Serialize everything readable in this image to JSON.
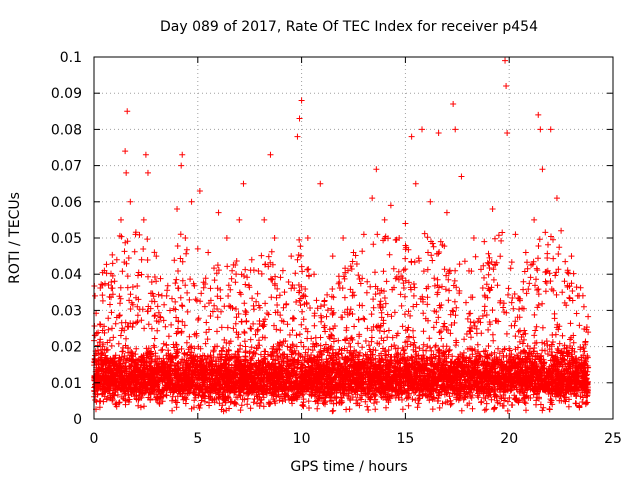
{
  "chart_data": {
    "type": "scatter",
    "title": "Day 089 of 2017, Rate Of TEC Index for receiver p454",
    "xlabel": "GPS time / hours",
    "ylabel": "ROTI / TECUs",
    "xlim": [
      0,
      25
    ],
    "ylim": [
      0,
      0.1
    ],
    "x_ticks": [
      0,
      5,
      10,
      15,
      20,
      25
    ],
    "x_tick_labels": [
      "0",
      "5",
      "10",
      "15",
      "20",
      "25"
    ],
    "y_ticks": [
      0,
      0.01,
      0.02,
      0.03,
      0.04,
      0.05,
      0.06,
      0.07,
      0.08,
      0.09,
      0.1
    ],
    "y_tick_labels": [
      "0",
      "0.01",
      "0.02",
      "0.03",
      "0.04",
      "0.05",
      "0.06",
      "0.07",
      "0.08",
      "0.09",
      "0.1"
    ],
    "grid": true,
    "marker": "+",
    "marker_color": "#ff0000",
    "x_data_range": [
      0,
      23.8
    ],
    "series": [
      {
        "name": "ROTI",
        "points": [
          [
            0.05,
            0.034
          ],
          [
            0.1,
            0.009
          ],
          [
            0.3,
            0.022
          ],
          [
            0.5,
            0.041
          ],
          [
            0.7,
            0.037
          ],
          [
            0.9,
            0.043
          ],
          [
            1.1,
            0.044
          ],
          [
            1.3,
            0.055
          ],
          [
            1.5,
            0.074
          ],
          [
            1.55,
            0.068
          ],
          [
            1.6,
            0.085
          ],
          [
            1.75,
            0.06
          ],
          [
            2.0,
            0.051
          ],
          [
            2.4,
            0.055
          ],
          [
            2.5,
            0.073
          ],
          [
            2.6,
            0.068
          ],
          [
            3.0,
            0.045
          ],
          [
            3.5,
            0.034
          ],
          [
            4.0,
            0.058
          ],
          [
            4.2,
            0.07
          ],
          [
            4.25,
            0.073
          ],
          [
            4.4,
            0.05
          ],
          [
            4.7,
            0.06
          ],
          [
            5.0,
            0.047
          ],
          [
            5.1,
            0.063
          ],
          [
            5.5,
            0.046
          ],
          [
            6.0,
            0.057
          ],
          [
            6.4,
            0.05
          ],
          [
            7.0,
            0.055
          ],
          [
            7.2,
            0.065
          ],
          [
            7.6,
            0.044
          ],
          [
            8.2,
            0.055
          ],
          [
            8.5,
            0.073
          ],
          [
            8.7,
            0.05
          ],
          [
            9.1,
            0.041
          ],
          [
            9.5,
            0.045
          ],
          [
            9.8,
            0.078
          ],
          [
            9.9,
            0.083
          ],
          [
            10.0,
            0.088
          ],
          [
            10.3,
            0.05
          ],
          [
            10.6,
            0.04
          ],
          [
            10.9,
            0.065
          ],
          [
            11.5,
            0.045
          ],
          [
            12.0,
            0.05
          ],
          [
            12.5,
            0.046
          ],
          [
            13.0,
            0.051
          ],
          [
            13.4,
            0.061
          ],
          [
            13.6,
            0.069
          ],
          [
            14.0,
            0.055
          ],
          [
            14.3,
            0.059
          ],
          [
            14.7,
            0.05
          ],
          [
            15.0,
            0.054
          ],
          [
            15.3,
            0.078
          ],
          [
            15.5,
            0.065
          ],
          [
            15.8,
            0.08
          ],
          [
            16.2,
            0.06
          ],
          [
            16.6,
            0.079
          ],
          [
            17.0,
            0.057
          ],
          [
            17.3,
            0.087
          ],
          [
            17.4,
            0.08
          ],
          [
            17.7,
            0.067
          ],
          [
            18.3,
            0.05
          ],
          [
            18.8,
            0.049
          ],
          [
            19.2,
            0.058
          ],
          [
            19.8,
            0.099
          ],
          [
            19.85,
            0.092
          ],
          [
            19.9,
            0.079
          ],
          [
            20.3,
            0.051
          ],
          [
            20.8,
            0.046
          ],
          [
            21.2,
            0.055
          ],
          [
            21.4,
            0.084
          ],
          [
            21.5,
            0.08
          ],
          [
            21.6,
            0.069
          ],
          [
            22.0,
            0.08
          ],
          [
            22.3,
            0.061
          ],
          [
            22.5,
            0.052
          ],
          [
            23.0,
            0.045
          ],
          [
            23.3,
            0.034
          ],
          [
            23.6,
            0.031
          ],
          [
            23.8,
            0.024
          ]
        ]
      }
    ]
  }
}
